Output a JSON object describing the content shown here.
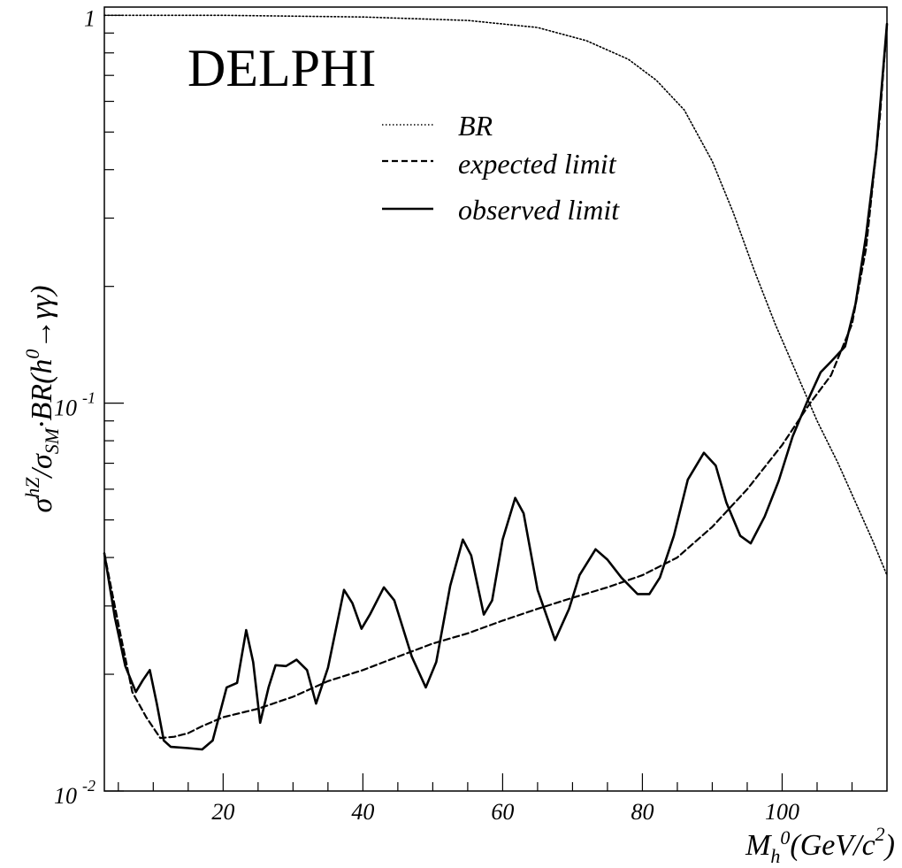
{
  "chart_data": {
    "type": "line",
    "title": "",
    "watermark": "DELPHI",
    "xlabel": {
      "main": "M",
      "sub": "h",
      "sup": "0",
      "unit": "(GeV/c",
      "unit_sup": "2",
      "unit_close": ")"
    },
    "ylabel": {
      "sigma1": "σ",
      "sup1": "hZ",
      "slash": "/",
      "sigma2": "σ",
      "sub2": "SM",
      "rest": "·BR(h",
      "sup3": "0",
      "end": "→γγ)"
    },
    "xlim": [
      3,
      115
    ],
    "ylim": [
      0.01,
      1.05
    ],
    "yscale": "log",
    "x_ticks": [
      {
        "value": 20,
        "label": "20"
      },
      {
        "value": 40,
        "label": "40"
      },
      {
        "value": 60,
        "label": "60"
      },
      {
        "value": 80,
        "label": "80"
      },
      {
        "value": 100,
        "label": "100"
      }
    ],
    "y_ticks": [
      {
        "value": 1,
        "base": "1",
        "exp": ""
      },
      {
        "value": 0.1,
        "base": "10",
        "exp": "-1"
      },
      {
        "value": 0.01,
        "base": "10",
        "exp": "-2"
      }
    ],
    "legend_position": "top-center",
    "series": [
      {
        "name": "BR",
        "style": "dotted",
        "points": [
          [
            3,
            1.0
          ],
          [
            20,
            1.0
          ],
          [
            40,
            0.99
          ],
          [
            55,
            0.97
          ],
          [
            65,
            0.93
          ],
          [
            72,
            0.86
          ],
          [
            78,
            0.77
          ],
          [
            82,
            0.68
          ],
          [
            86,
            0.57
          ],
          [
            90,
            0.42
          ],
          [
            93,
            0.31
          ],
          [
            96,
            0.22
          ],
          [
            99,
            0.16
          ],
          [
            102,
            0.12
          ],
          [
            105,
            0.09
          ],
          [
            108,
            0.07
          ],
          [
            111,
            0.053
          ],
          [
            113,
            0.044
          ],
          [
            115,
            0.036
          ]
        ]
      },
      {
        "name": "expected limit",
        "style": "dashed",
        "points": [
          [
            3,
            0.041
          ],
          [
            5,
            0.027
          ],
          [
            7,
            0.018
          ],
          [
            9,
            0.0155
          ],
          [
            11,
            0.0137
          ],
          [
            13,
            0.0138
          ],
          [
            15,
            0.0141
          ],
          [
            17,
            0.0147
          ],
          [
            20,
            0.0155
          ],
          [
            25,
            0.0163
          ],
          [
            30,
            0.0175
          ],
          [
            35,
            0.0192
          ],
          [
            40,
            0.0205
          ],
          [
            45,
            0.0222
          ],
          [
            50,
            0.024
          ],
          [
            55,
            0.0255
          ],
          [
            60,
            0.0275
          ],
          [
            65,
            0.0295
          ],
          [
            70,
            0.0315
          ],
          [
            75,
            0.0335
          ],
          [
            80,
            0.036
          ],
          [
            85,
            0.04
          ],
          [
            90,
            0.048
          ],
          [
            95,
            0.06
          ],
          [
            100,
            0.078
          ],
          [
            104,
            0.1
          ],
          [
            107,
            0.118
          ],
          [
            110,
            0.16
          ],
          [
            112,
            0.25
          ],
          [
            114,
            0.55
          ],
          [
            115,
            0.95
          ]
        ]
      },
      {
        "name": "observed limit",
        "style": "solid",
        "points": [
          [
            3,
            0.041
          ],
          [
            4.5,
            0.028
          ],
          [
            6,
            0.021
          ],
          [
            7.5,
            0.018
          ],
          [
            8.5,
            0.0193
          ],
          [
            9.5,
            0.0205
          ],
          [
            10.5,
            0.0168
          ],
          [
            11.5,
            0.0135
          ],
          [
            12.5,
            0.013
          ],
          [
            15,
            0.0129
          ],
          [
            17,
            0.0128
          ],
          [
            18.5,
            0.0135
          ],
          [
            19.5,
            0.0158
          ],
          [
            20.5,
            0.0185
          ],
          [
            22,
            0.019
          ],
          [
            23.3,
            0.026
          ],
          [
            24.3,
            0.0215
          ],
          [
            25.3,
            0.015
          ],
          [
            26.5,
            0.0185
          ],
          [
            27.5,
            0.0211
          ],
          [
            29,
            0.021
          ],
          [
            30.5,
            0.0218
          ],
          [
            32,
            0.0205
          ],
          [
            33.3,
            0.0168
          ],
          [
            35,
            0.0208
          ],
          [
            37.3,
            0.033
          ],
          [
            38.5,
            0.0305
          ],
          [
            39.8,
            0.0262
          ],
          [
            41,
            0.0285
          ],
          [
            43,
            0.0335
          ],
          [
            44.5,
            0.031
          ],
          [
            47,
            0.0222
          ],
          [
            49,
            0.0185
          ],
          [
            50.5,
            0.0215
          ],
          [
            52.5,
            0.0338
          ],
          [
            54.3,
            0.0445
          ],
          [
            55.5,
            0.0405
          ],
          [
            57.3,
            0.0285
          ],
          [
            58.5,
            0.031
          ],
          [
            60,
            0.0445
          ],
          [
            61.8,
            0.057
          ],
          [
            63,
            0.052
          ],
          [
            65,
            0.033
          ],
          [
            67.5,
            0.0245
          ],
          [
            69.5,
            0.0295
          ],
          [
            71,
            0.036
          ],
          [
            73.3,
            0.042
          ],
          [
            75,
            0.0395
          ],
          [
            77,
            0.0355
          ],
          [
            79.3,
            0.0322
          ],
          [
            81,
            0.0322
          ],
          [
            82.5,
            0.0355
          ],
          [
            84.5,
            0.0455
          ],
          [
            86.5,
            0.0635
          ],
          [
            88.8,
            0.0745
          ],
          [
            90.5,
            0.069
          ],
          [
            92,
            0.0555
          ],
          [
            94,
            0.0455
          ],
          [
            95.5,
            0.0435
          ],
          [
            97.5,
            0.051
          ],
          [
            99.5,
            0.063
          ],
          [
            101.5,
            0.082
          ],
          [
            103.5,
            0.1
          ],
          [
            105.5,
            0.12
          ],
          [
            107,
            0.128
          ],
          [
            109,
            0.14
          ],
          [
            110.5,
            0.18
          ],
          [
            112,
            0.27
          ],
          [
            113.5,
            0.45
          ],
          [
            115,
            0.95
          ]
        ]
      }
    ]
  }
}
